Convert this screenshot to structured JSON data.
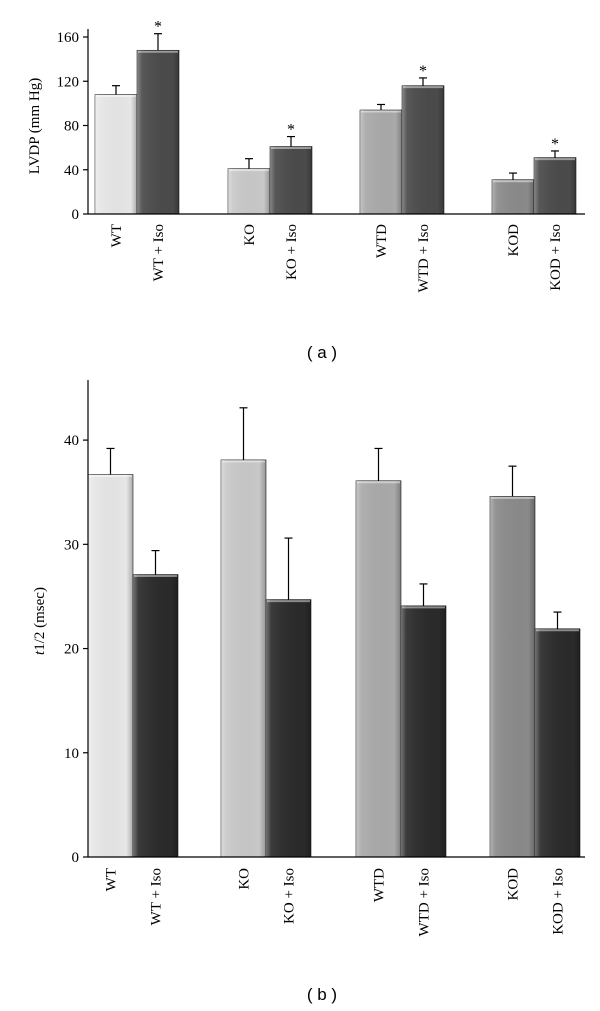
{
  "colors": {
    "axis": "#000000",
    "error": "#000000",
    "WT": "#e6e6e6",
    "KO": "#c8c8c8",
    "WTD": "#a9a9a9",
    "KOD": "#8a8a8a",
    "Iso_a": "#4a4a4a",
    "Iso_b": "#2a2a2a"
  },
  "chart_data": [
    {
      "type": "bar",
      "panel_label": "( a )",
      "ylabel": "LVDP (mm Hg)",
      "ylim": [
        0,
        160
      ],
      "yticks": [
        0,
        40,
        80,
        120,
        160
      ],
      "groups": [
        {
          "bars": [
            {
              "label": "WT",
              "value": 108,
              "error": 8,
              "color_key": "WT",
              "sig": ""
            },
            {
              "label": "WT + Iso",
              "value": 148,
              "error": 15,
              "color_key": "Iso_a",
              "sig": "*"
            }
          ]
        },
        {
          "bars": [
            {
              "label": "KO",
              "value": 41,
              "error": 9,
              "color_key": "KO",
              "sig": ""
            },
            {
              "label": "KO + Iso",
              "value": 61,
              "error": 9,
              "color_key": "Iso_a",
              "sig": "*"
            }
          ]
        },
        {
          "bars": [
            {
              "label": "WTD",
              "value": 94,
              "error": 5,
              "color_key": "WTD",
              "sig": ""
            },
            {
              "label": "WTD + Iso",
              "value": 116,
              "error": 7,
              "color_key": "Iso_a",
              "sig": "*"
            }
          ]
        },
        {
          "bars": [
            {
              "label": "KOD",
              "value": 31,
              "error": 6,
              "color_key": "KOD",
              "sig": ""
            },
            {
              "label": "KOD + Iso",
              "value": 51,
              "error": 6,
              "color_key": "Iso_a",
              "sig": "*"
            }
          ]
        }
      ]
    },
    {
      "type": "bar",
      "panel_label": "( b )",
      "ylabel_italic": "t",
      "ylabel_rest": "1/2 (msec)",
      "ylim": [
        0,
        45
      ],
      "yticks": [
        0,
        10,
        20,
        30,
        40
      ],
      "groups": [
        {
          "bars": [
            {
              "label": "WT",
              "value": 36.7,
              "error": 2.5,
              "color_key": "WT",
              "sig": ""
            },
            {
              "label": "WT + Iso",
              "value": 27.1,
              "error": 2.3,
              "color_key": "Iso_b",
              "sig": ""
            }
          ]
        },
        {
          "bars": [
            {
              "label": "KO",
              "value": 38.1,
              "error": 5.0,
              "color_key": "KO",
              "sig": ""
            },
            {
              "label": "KO + Iso",
              "value": 24.7,
              "error": 5.9,
              "color_key": "Iso_b",
              "sig": ""
            }
          ]
        },
        {
          "bars": [
            {
              "label": "WTD",
              "value": 36.1,
              "error": 3.1,
              "color_key": "WTD",
              "sig": ""
            },
            {
              "label": "WTD + Iso",
              "value": 24.1,
              "error": 2.1,
              "color_key": "Iso_b",
              "sig": ""
            }
          ]
        },
        {
          "bars": [
            {
              "label": "KOD",
              "value": 34.6,
              "error": 2.9,
              "color_key": "KOD",
              "sig": ""
            },
            {
              "label": "KOD + Iso",
              "value": 21.9,
              "error": 1.6,
              "color_key": "Iso_b",
              "sig": ""
            }
          ]
        }
      ]
    }
  ]
}
